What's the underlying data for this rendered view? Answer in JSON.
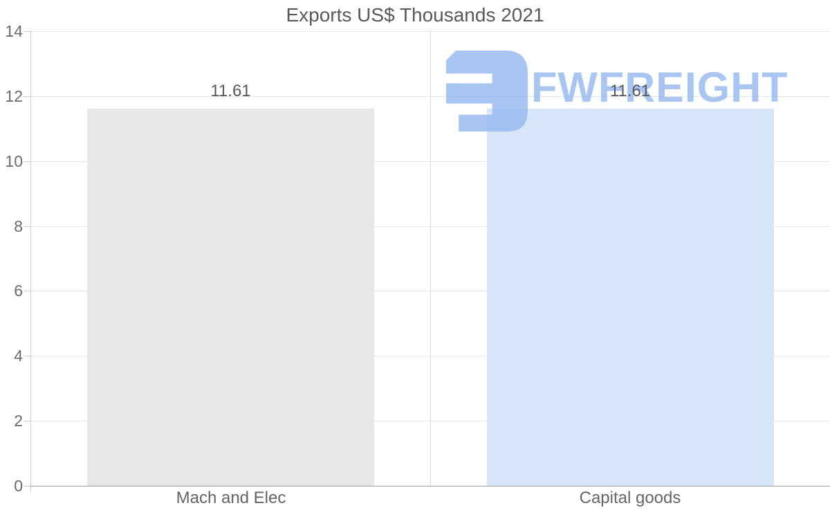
{
  "title": "Exports US$ Thousands 2021",
  "watermark": {
    "brand": "FWFREIGHT",
    "logo_icon": "fwfreight-logo-icon",
    "color": "#a9c6f2"
  },
  "chart_data": {
    "type": "bar",
    "title": "Exports US$ Thousands 2021",
    "categories": [
      "Mach and Elec",
      "Capital goods"
    ],
    "values": [
      11.61,
      11.61
    ],
    "value_labels": [
      "11.61",
      "11.61"
    ],
    "bar_colors": [
      "#e7e7e7",
      "#d7e6f8"
    ],
    "xlabel": "",
    "ylabel": "",
    "ylim": [
      0,
      14
    ],
    "ytick_labels": [
      "14",
      "12",
      "10",
      "8",
      "6",
      "4",
      "2",
      "0"
    ],
    "ytick_values": [
      14,
      12,
      10,
      8,
      6,
      4,
      2,
      0
    ],
    "grid": "horizontal gridlines on, vertical category divider",
    "legend": "none",
    "label_color": "#59595b",
    "axis_color": "#9d9d9d",
    "gridline_color": "#e5e5e5"
  }
}
